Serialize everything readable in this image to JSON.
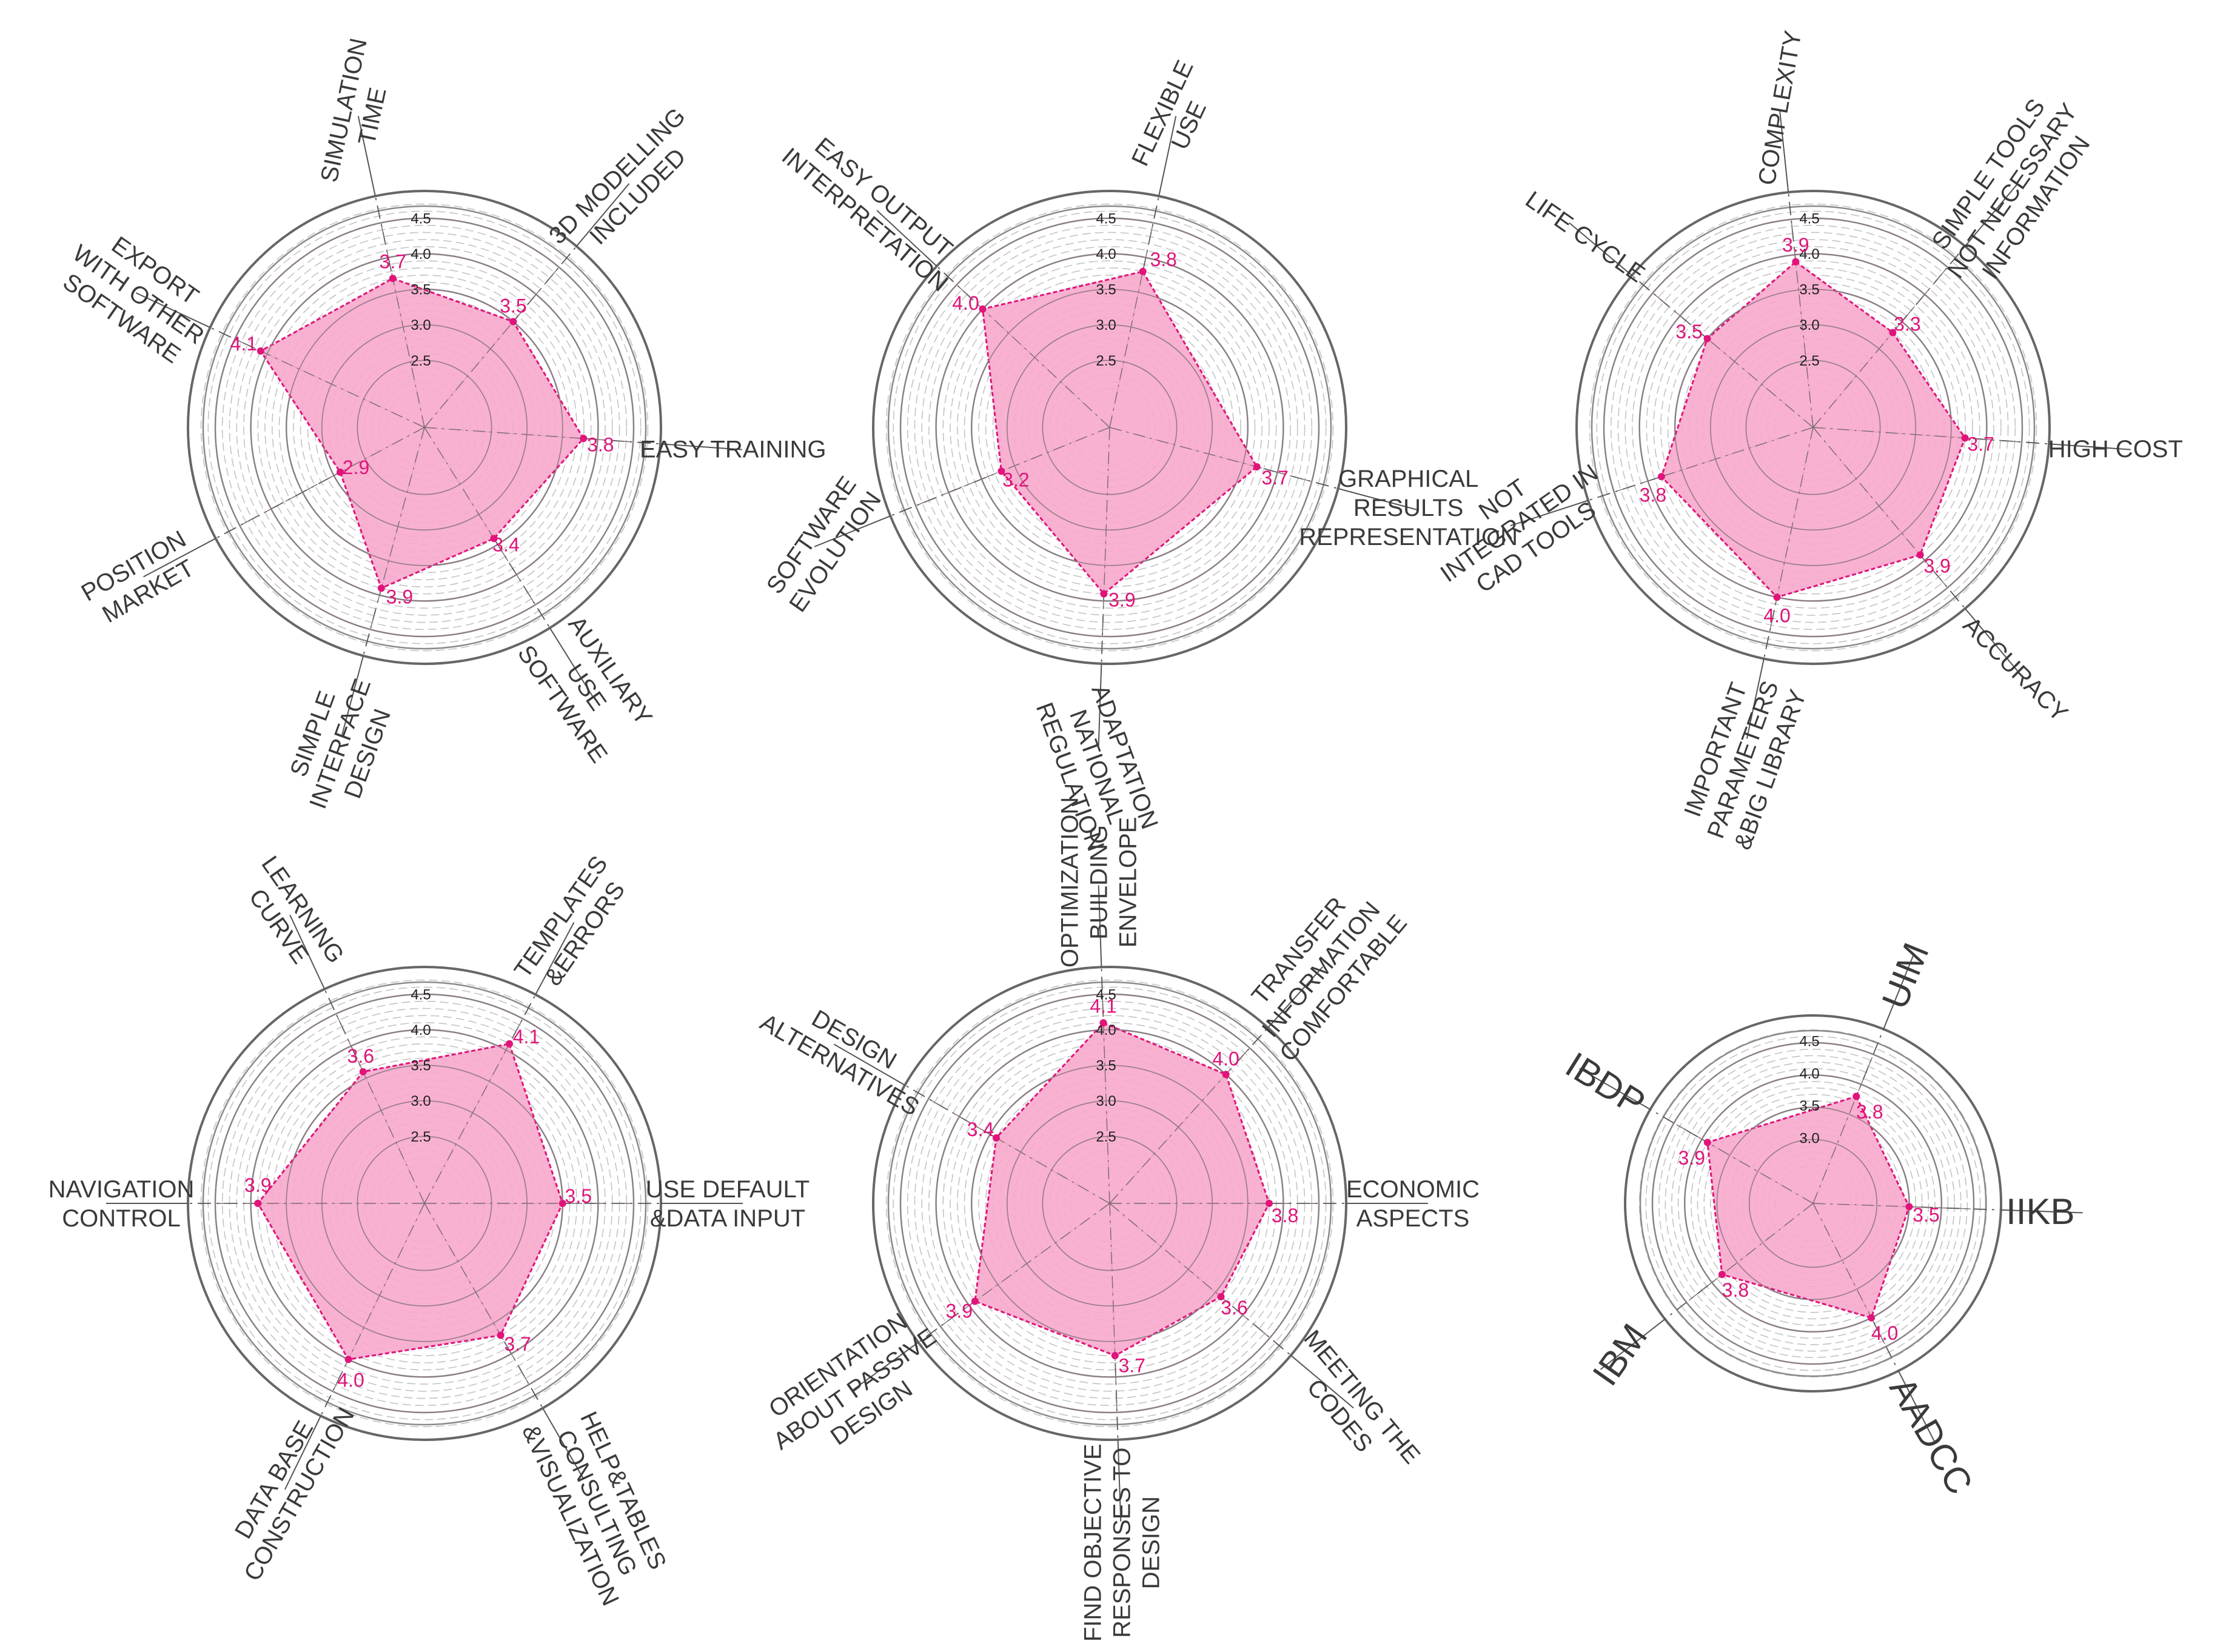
{
  "chart_data": [
    {
      "type": "radar",
      "ticks": [
        "2.5",
        "3.0",
        "3.5",
        "4.0",
        "4.5"
      ],
      "axes": [
        {
          "label": [
            "SIMULATION",
            "TIME"
          ],
          "value": 3.7
        },
        {
          "label": [
            "3D MODELLING",
            "INCLUDED"
          ],
          "value": 3.5
        },
        {
          "label": [
            "EASY TRAINING"
          ],
          "value": 3.8
        },
        {
          "label": [
            "AUXILIARY",
            "USE",
            "SOFTWARE"
          ],
          "value": 3.4
        },
        {
          "label": [
            "SIMPLE",
            "INTERFACE",
            "DESIGN"
          ],
          "value": 3.9
        },
        {
          "label": [
            "POSITION",
            "MARKET"
          ],
          "value": 2.9
        },
        {
          "label": [
            "EXPORT",
            "WITH OTHER",
            "SOFTWARE"
          ],
          "value": 4.1
        }
      ]
    },
    {
      "type": "radar",
      "ticks": [
        "2.5",
        "3.0",
        "3.5",
        "4.0",
        "4.5"
      ],
      "axes": [
        {
          "label": [
            "FLEXIBLE",
            "USE"
          ],
          "value": 3.8
        },
        {
          "label": [
            "GRAPHICAL",
            "RESULTS",
            "REPRESENTATION"
          ],
          "value": 3.7
        },
        {
          "label": [
            "ADAPTATION",
            "NATIONAL",
            "REGULATION"
          ],
          "value": 3.9
        },
        {
          "label": [
            "SOFTWARE",
            "EVOLUTION"
          ],
          "value": 3.2
        },
        {
          "label": [
            "EASY OUTPUT",
            "INTERPRETATION"
          ],
          "value": 4.0
        }
      ]
    },
    {
      "type": "radar",
      "ticks": [
        "2.5",
        "3.0",
        "3.5",
        "4.0",
        "4.5"
      ],
      "axes": [
        {
          "label": [
            "COMPLEXITY"
          ],
          "value": 3.9
        },
        {
          "label": [
            "SIMPLE TOOLS",
            "NOT NECESSARY",
            "INFORMATION"
          ],
          "value": 3.3
        },
        {
          "label": [
            "HIGH COST"
          ],
          "value": 3.7
        },
        {
          "label": [
            "ACCURACY"
          ],
          "value": 3.9
        },
        {
          "label": [
            "IMPORTANT",
            "PARAMETERS",
            "&BIG LIBRARY"
          ],
          "value": 4.0
        },
        {
          "label": [
            "NOT",
            "INTEGRATED IN",
            "CAD TOOLS"
          ],
          "value": 3.8
        },
        {
          "label": [
            "LIFE CYCLE"
          ],
          "value": 3.5
        }
      ]
    },
    {
      "type": "radar",
      "ticks": [
        "2.5",
        "3.0",
        "3.5",
        "4.0",
        "4.5"
      ],
      "axes": [
        {
          "label": [
            "TEMPLATES",
            "&ERRORS"
          ],
          "value": 4.1
        },
        {
          "label": [
            "USE DEFAULT",
            "&DATA INPUT"
          ],
          "value": 3.5
        },
        {
          "label": [
            "HELP&TABLES",
            "CONSULTING",
            "&VISUALIZATION"
          ],
          "value": 3.7
        },
        {
          "label": [
            "DATA BASE",
            "CONSTRUCTION"
          ],
          "value": 4.0
        },
        {
          "label": [
            "NAVIGATION",
            "CONTROL"
          ],
          "value": 3.9
        },
        {
          "label": [
            "LEARNING",
            "CURVE"
          ],
          "value": 3.6
        }
      ]
    },
    {
      "type": "radar",
      "ticks": [
        "2.5",
        "3.0",
        "3.5",
        "4.0",
        "4.5"
      ],
      "axes": [
        {
          "label": [
            "OPTIMIZATION",
            "BUILDING",
            "ENVELOPE"
          ],
          "value": 4.1
        },
        {
          "label": [
            "TRANSFER",
            "INFORMATION",
            "COMFORTABLE"
          ],
          "value": 4.0
        },
        {
          "label": [
            "ECONOMIC",
            "ASPECTS"
          ],
          "value": 3.8
        },
        {
          "label": [
            "MEETING THE",
            "CODES"
          ],
          "value": 3.6
        },
        {
          "label": [
            "FIND OBJECTIVE",
            "RESPONSES TO",
            "DESIGN"
          ],
          "value": 3.7
        },
        {
          "label": [
            "ORIENTATION",
            "ABOUT PASSIVE",
            "DESIGN"
          ],
          "value": 3.9
        },
        {
          "label": [
            "DESIGN",
            "ALTERNATIVES"
          ],
          "value": 3.4
        }
      ]
    },
    {
      "type": "radar",
      "ticks": [
        "3.0",
        "3.5",
        "4.0",
        "4.5"
      ],
      "axes": [
        {
          "label": [
            "UIM"
          ],
          "value": 3.8
        },
        {
          "label": [
            "IIKB"
          ],
          "value": 3.5
        },
        {
          "label": [
            "AADCC"
          ],
          "value": 4.0
        },
        {
          "label": [
            "IBM"
          ],
          "value": 3.8
        },
        {
          "label": [
            "IBDP"
          ],
          "value": 3.9
        }
      ]
    }
  ],
  "colors": {
    "fill": "#f7a9cc",
    "stroke": "#e0147a",
    "value_text": "#e0147a",
    "grid": "#8a8a8a",
    "label": "#3a3a3a"
  }
}
